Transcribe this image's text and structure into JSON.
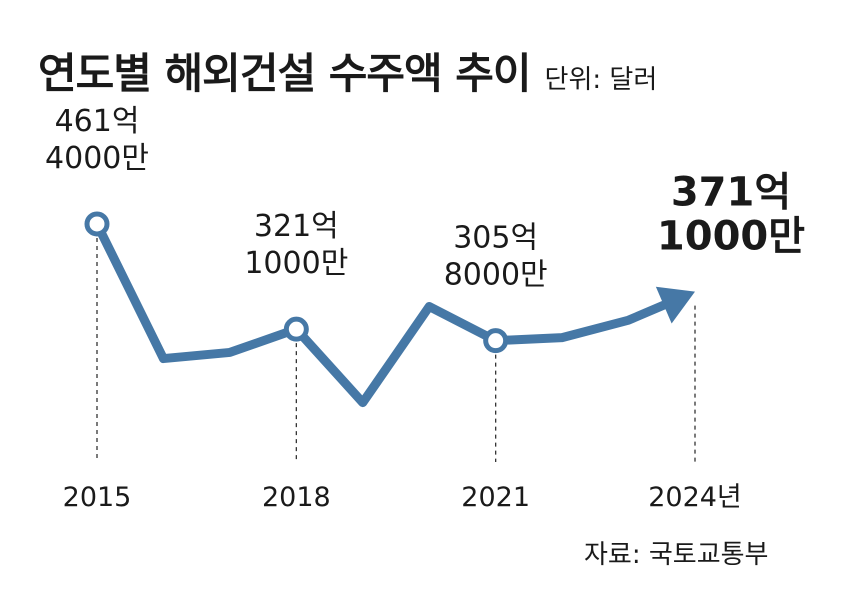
{
  "header": {
    "title": "연도별 해외건설 수주액 추이",
    "unit": "단위: 달러"
  },
  "source": "자료: 국토교통부",
  "colors": {
    "line": "#4678a6",
    "marker_fill": "#ffffff",
    "text": "#1a1a1a",
    "guide": "#333333"
  },
  "chart_data": {
    "type": "line",
    "title": "연도별 해외건설 수주액 추이",
    "unit": "단위: 달러",
    "y_unit": "억 달러",
    "x": [
      2015,
      2016,
      2017,
      2018,
      2019,
      2020,
      2021,
      2022,
      2023,
      2024
    ],
    "values": [
      461.4,
      281.9,
      290.1,
      321.1,
      223.2,
      351.3,
      305.8,
      309.8,
      333.1,
      371.1
    ],
    "ticks": [
      "2015",
      "2018",
      "2021",
      "2024년"
    ],
    "tick_x": [
      2015,
      2018,
      2021,
      2024
    ],
    "markers": [
      2015,
      2018,
      2021
    ],
    "end_arrow": true,
    "ylim": [
      200,
      480
    ],
    "annotations": [
      {
        "x": 2015,
        "line1": "461억",
        "line2": "4000만",
        "emphasis": false
      },
      {
        "x": 2018,
        "line1": "321억",
        "line2": "1000만",
        "emphasis": false
      },
      {
        "x": 2021,
        "line1": "305억",
        "line2": "8000만",
        "emphasis": false
      },
      {
        "x": 2024,
        "line1": "371억",
        "line2": "1000만",
        "emphasis": true
      }
    ]
  }
}
